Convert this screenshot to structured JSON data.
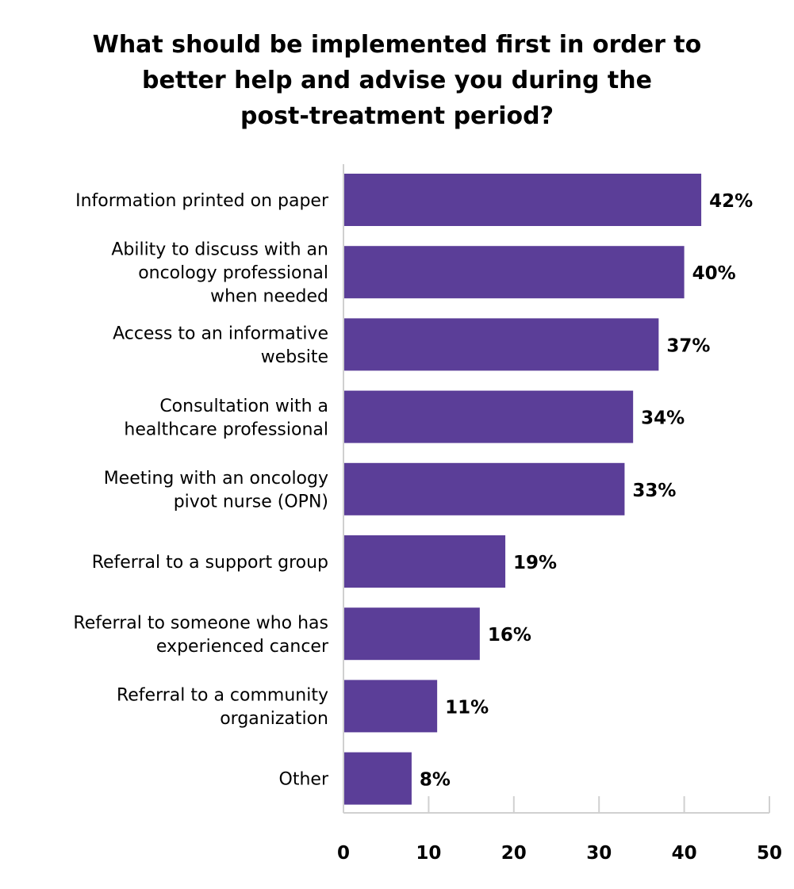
{
  "chart_data": {
    "type": "bar",
    "orientation": "horizontal",
    "title_lines": [
      "What should be implemented first in order to",
      "better help and advise you during the",
      "post-treatment period?"
    ],
    "categories": [
      [
        "Information printed on paper"
      ],
      [
        "Ability to discuss with an",
        "oncology professional",
        "when needed"
      ],
      [
        "Access to an informative",
        "website"
      ],
      [
        "Consultation with a",
        "healthcare professional"
      ],
      [
        "Meeting with an oncology",
        "pivot nurse (OPN)"
      ],
      [
        "Referral to a support group"
      ],
      [
        "Referral to someone who has",
        "experienced cancer"
      ],
      [
        "Referral to a community",
        "organization"
      ],
      [
        "Other"
      ]
    ],
    "values": [
      42,
      40,
      37,
      34,
      33,
      19,
      16,
      11,
      8
    ],
    "value_labels": [
      "42%",
      "40%",
      "37%",
      "34%",
      "33%",
      "19%",
      "16%",
      "11%",
      "8%"
    ],
    "xlim": [
      0,
      50
    ],
    "xticks": [
      0,
      10,
      20,
      30,
      40,
      50
    ],
    "xtick_labels": [
      "0",
      "10",
      "20",
      "30",
      "40",
      "50"
    ],
    "bar_color": "#5b3e98",
    "axis_color": "#d0d0d0",
    "grid": false,
    "legend": "none"
  }
}
